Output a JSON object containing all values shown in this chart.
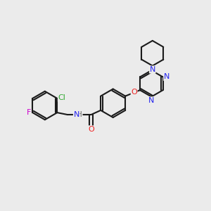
{
  "bg_color": "#ebebeb",
  "bond_color": "#1a1a1a",
  "bond_width": 1.5,
  "atom_colors": {
    "F": "#cc00cc",
    "Cl": "#33aa33",
    "N": "#2222ee",
    "O": "#ee2222",
    "H": "#666666",
    "C": "#111111"
  },
  "font_size": 8.0,
  "fig_w": 3.0,
  "fig_h": 3.0,
  "dpi": 100,
  "xlim": [
    0,
    10
  ],
  "ylim": [
    0,
    10
  ]
}
